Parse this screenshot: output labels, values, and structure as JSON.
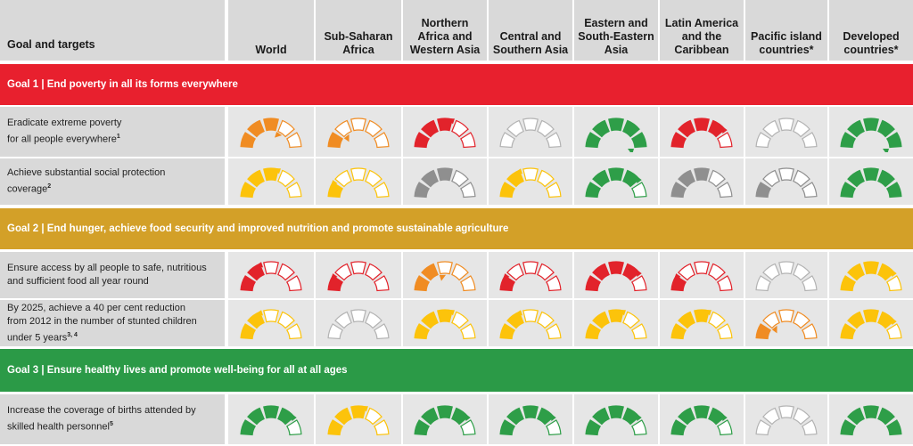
{
  "header": {
    "goal_label": "Goal and targets",
    "regions": [
      [
        "World"
      ],
      [
        "Sub-Saharan",
        "Africa"
      ],
      [
        "Northern",
        "Africa and",
        "Western Asia"
      ],
      [
        "Central and",
        "Southern Asia"
      ],
      [
        "Eastern and",
        "South-Eastern",
        "Asia"
      ],
      [
        "Latin America",
        "and the",
        "Caribbean"
      ],
      [
        "Pacific island",
        "countries*"
      ],
      [
        "Developed",
        "countries*"
      ]
    ]
  },
  "colors": {
    "goal1": "#e8202e",
    "goal2": "#d3a028",
    "goal3": "#2b9a47",
    "red": "#e2232b",
    "orange": "#f08c23",
    "yellow": "#fcc30b",
    "green": "#2e9e48",
    "gray": "#8f8f8f",
    "outline_empty": "#b3b3b3"
  },
  "goals": [
    {
      "title": "Goal 1 | End poverty in all its forms everywhere",
      "color": "#e8202e",
      "targets": [
        {
          "lines": [
            "Eradicate extreme poverty",
            "for all people everywhere"
          ],
          "sup": "1",
          "gauges": [
            {
              "color": "orange",
              "level": 3,
              "arrow": "down"
            },
            {
              "color": "orange",
              "level": 1,
              "arrow": "down"
            },
            {
              "color": "red",
              "level": 3,
              "arrow": "up"
            },
            {
              "color": "none",
              "level": 0,
              "arrow": "none"
            },
            {
              "color": "green",
              "level": 5,
              "arrow": "down"
            },
            {
              "color": "red",
              "level": 4,
              "arrow": "up"
            },
            {
              "color": "none",
              "level": 0,
              "arrow": "none"
            },
            {
              "color": "green",
              "level": 5,
              "arrow": "down"
            }
          ]
        },
        {
          "lines": [
            "Achieve substantial social protection",
            "coverage"
          ],
          "sup": "2",
          "gauges": [
            {
              "color": "yellow",
              "level": 3,
              "arrow": "up"
            },
            {
              "color": "yellow",
              "level": 1,
              "arrow": "up"
            },
            {
              "color": "gray",
              "level": 3,
              "arrow": "none"
            },
            {
              "color": "yellow",
              "level": 2,
              "arrow": "up"
            },
            {
              "color": "green",
              "level": 4,
              "arrow": "up"
            },
            {
              "color": "gray",
              "level": 3,
              "arrow": "none"
            },
            {
              "color": "gray",
              "level": 1,
              "arrow": "none"
            },
            {
              "color": "green",
              "level": 5,
              "arrow": "none"
            }
          ]
        }
      ]
    },
    {
      "title": "Goal 2 | End hunger, achieve food security and improved nutrition and promote sustainable agriculture",
      "color": "#d3a028",
      "targets": [
        {
          "lines": [
            "Ensure access by all people to safe, nutritious",
            "and sufficient food all year round"
          ],
          "sup": "",
          "gauges": [
            {
              "color": "red",
              "level": 2,
              "arrow": "up"
            },
            {
              "color": "red",
              "level": 1,
              "arrow": "up"
            },
            {
              "color": "orange",
              "level": 2,
              "arrow": "down"
            },
            {
              "color": "red",
              "level": 1,
              "arrow": "up"
            },
            {
              "color": "red",
              "level": 4,
              "arrow": "up"
            },
            {
              "color": "red",
              "level": 1,
              "arrow": "up"
            },
            {
              "color": "none",
              "level": 0,
              "arrow": "none"
            },
            {
              "color": "yellow",
              "level": 4,
              "arrow": "up"
            }
          ]
        },
        {
          "lines": [
            "By 2025, achieve a 40 per cent reduction",
            "from 2012 in the number of stunted children",
            "under 5 years"
          ],
          "sup": "3, 4",
          "gauges": [
            {
              "color": "yellow",
              "level": 2,
              "arrow": "up"
            },
            {
              "color": "none",
              "level": 0,
              "arrow": "none"
            },
            {
              "color": "yellow",
              "level": 3,
              "arrow": "up"
            },
            {
              "color": "yellow",
              "level": 2,
              "arrow": "up"
            },
            {
              "color": "yellow",
              "level": 3,
              "arrow": "up"
            },
            {
              "color": "yellow",
              "level": 3,
              "arrow": "up"
            },
            {
              "color": "orange",
              "level": 1,
              "arrow": "down"
            },
            {
              "color": "yellow",
              "level": 4,
              "arrow": "up"
            }
          ]
        }
      ]
    },
    {
      "title": "Goal 3 | Ensure healthy lives and promote well-being for all at all ages",
      "color": "#2b9a47",
      "targets": [
        {
          "lines": [
            "Increase the coverage of births attended by",
            "skilled health personnel"
          ],
          "sup": "5",
          "gauges": [
            {
              "color": "green",
              "level": 4,
              "arrow": "up"
            },
            {
              "color": "yellow",
              "level": 3,
              "arrow": "up"
            },
            {
              "color": "green",
              "level": 4,
              "arrow": "up"
            },
            {
              "color": "green",
              "level": 4,
              "arrow": "up"
            },
            {
              "color": "green",
              "level": 4,
              "arrow": "up"
            },
            {
              "color": "green",
              "level": 4,
              "arrow": "up"
            },
            {
              "color": "none",
              "level": 0,
              "arrow": "none"
            },
            {
              "color": "green",
              "level": 5,
              "arrow": "none"
            }
          ]
        }
      ]
    }
  ]
}
